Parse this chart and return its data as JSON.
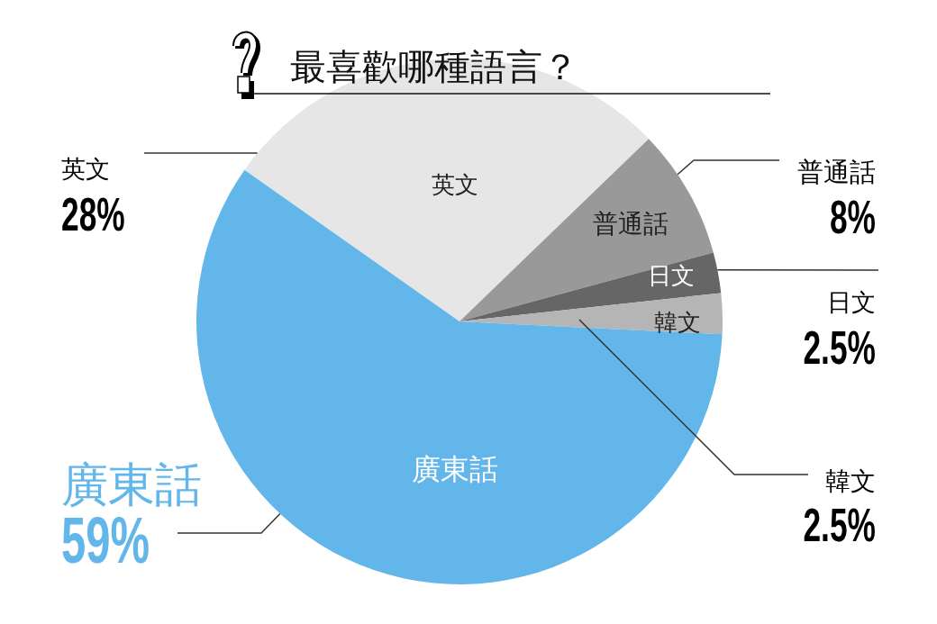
{
  "chart_data": {
    "type": "pie",
    "title": "最喜歡哪種語言？",
    "categories": [
      "英文",
      "普通話",
      "日文",
      "韓文",
      "廣東話"
    ],
    "values": [
      28,
      8,
      2.5,
      2.5,
      59
    ],
    "colors": [
      "#e6e6e6",
      "#999999",
      "#666666",
      "#b5b5b5",
      "#63b6ea"
    ],
    "value_labels": [
      "28%",
      "8%",
      "2.5%",
      "2.5%",
      "59%"
    ]
  }
}
